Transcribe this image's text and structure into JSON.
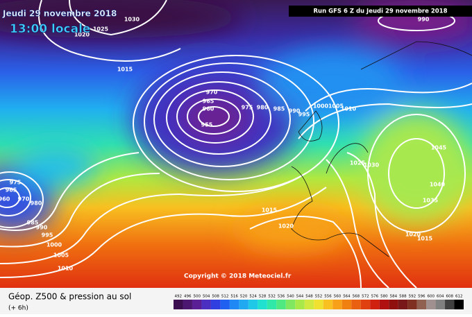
{
  "header": {
    "date": "Jeudi 29 novembre 2018",
    "time": "13:00 locale",
    "run": "Run GFS 6 Z du Jeudi 29 novembre 2018"
  },
  "copyright": "Copyright © 2018 Meteociel.fr",
  "footer": {
    "title": "Géop. Z500 & pression au sol",
    "lead": "(+ 6h)"
  },
  "isobar_labels": [
    "1030",
    "1025",
    "1020",
    "1015",
    "970",
    "965",
    "960",
    "955",
    "975",
    "980",
    "985",
    "990",
    "995",
    "1000",
    "1005",
    "1010",
    "1025",
    "1030",
    "1045",
    "1040",
    "1035",
    "1020",
    "1015",
    "1015",
    "1020",
    "975",
    "965",
    "960",
    "970",
    "980",
    "985",
    "990",
    "995",
    "1000",
    "1005",
    "1010",
    "990"
  ],
  "scale": {
    "values": [
      492,
      496,
      500,
      504,
      508,
      512,
      516,
      520,
      524,
      528,
      532,
      536,
      540,
      544,
      548,
      552,
      556,
      560,
      564,
      568,
      572,
      576,
      580,
      584,
      588,
      592,
      596,
      600,
      604,
      608,
      612
    ],
    "colors": [
      "#3b0f4f",
      "#4b1770",
      "#5a1f95",
      "#4a2fc0",
      "#3040e0",
      "#2060f0",
      "#1f88f5",
      "#20a8f0",
      "#20c8e8",
      "#20e0d0",
      "#30e8a8",
      "#50e880",
      "#80e860",
      "#a8e848",
      "#d0e840",
      "#f0e030",
      "#f8c020",
      "#f8a018",
      "#f08010",
      "#e86010",
      "#e04010",
      "#d02010",
      "#b01010",
      "#901010",
      "#781818",
      "#803020",
      "#906050",
      "#a09090",
      "#808080",
      "#404040",
      "#000000"
    ]
  }
}
